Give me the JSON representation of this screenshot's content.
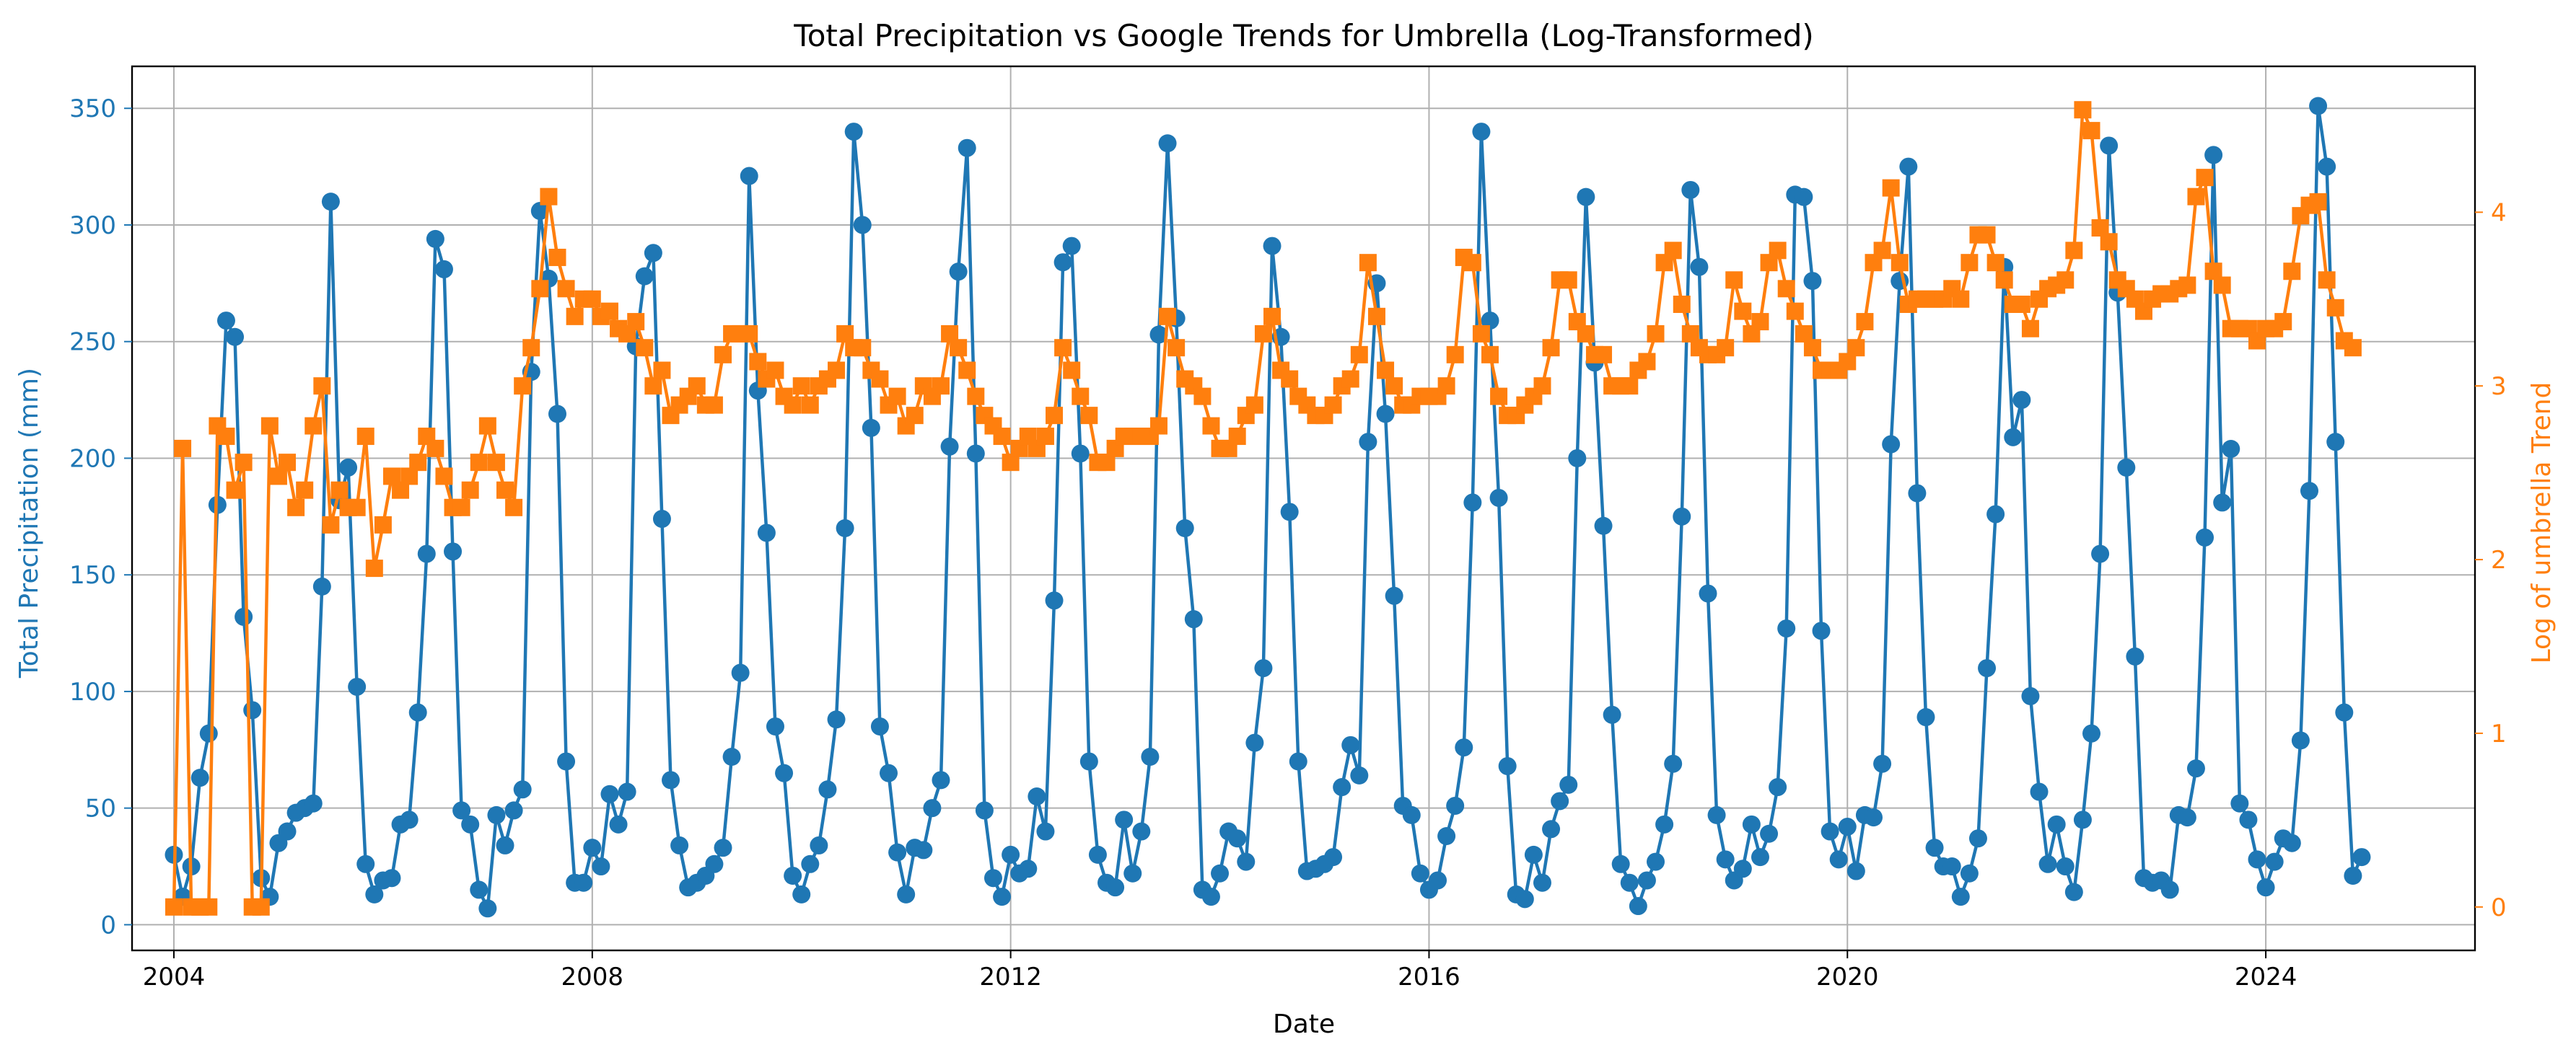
{
  "chart_data": {
    "type": "line",
    "title": "Total Precipitation vs Google Trends for Umbrella (Log-Transformed)",
    "xlabel": "Date",
    "ylabel_left": "Total Precipitation (mm)",
    "ylabel_right": "Log of umbrella Trend",
    "xlim": [
      2003.6,
      2026.0
    ],
    "ylim_left": [
      -11,
      368
    ],
    "ylim_right": [
      -0.25,
      4.84
    ],
    "grid": true,
    "colors": {
      "precip": "#1f77b4",
      "trend": "#ff7f0e",
      "axis": "#000000",
      "grid": "#b0b0b0"
    },
    "x_ticks": [
      {
        "value": 2004,
        "label": "2004"
      },
      {
        "value": 2008,
        "label": "2008"
      },
      {
        "value": 2012,
        "label": "2012"
      },
      {
        "value": 2016,
        "label": "2016"
      },
      {
        "value": 2020,
        "label": "2020"
      },
      {
        "value": 2024,
        "label": "2024"
      }
    ],
    "y_ticks_left": [
      {
        "value": 0,
        "label": "0"
      },
      {
        "value": 50,
        "label": "50"
      },
      {
        "value": 100,
        "label": "100"
      },
      {
        "value": 150,
        "label": "150"
      },
      {
        "value": 200,
        "label": "200"
      },
      {
        "value": 250,
        "label": "250"
      },
      {
        "value": 300,
        "label": "300"
      },
      {
        "value": 350,
        "label": "350"
      }
    ],
    "y_ticks_right": [
      {
        "value": 0,
        "label": "0"
      },
      {
        "value": 1,
        "label": "1"
      },
      {
        "value": 2,
        "label": "2"
      },
      {
        "value": 3,
        "label": "3"
      },
      {
        "value": 4,
        "label": "4"
      }
    ],
    "start_year": 2004,
    "series": [
      {
        "name": "Total Precipitation (mm)",
        "axis": "left",
        "marker": "circle",
        "values": [
          30,
          12,
          25,
          63,
          82,
          180,
          259,
          252,
          132,
          92,
          20,
          12,
          35,
          40,
          48,
          50,
          52,
          145,
          310,
          182,
          196,
          102,
          26,
          13,
          19,
          20,
          43,
          45,
          91,
          159,
          294,
          281,
          160,
          49,
          43,
          15,
          7,
          47,
          34,
          49,
          58,
          237,
          306,
          277,
          219,
          70,
          18,
          18,
          33,
          25,
          56,
          43,
          57,
          248,
          278,
          288,
          174,
          62,
          34,
          16,
          18,
          21,
          26,
          33,
          72,
          108,
          321,
          229,
          168,
          85,
          65,
          21,
          13,
          26,
          34,
          58,
          88,
          170,
          340,
          300,
          213,
          85,
          65,
          31,
          13,
          33,
          32,
          50,
          62,
          205,
          280,
          333,
          202,
          49,
          20,
          12,
          30,
          22,
          24,
          55,
          40,
          139,
          284,
          291,
          202,
          70,
          30,
          18,
          16,
          45,
          22,
          40,
          72,
          253,
          335,
          260,
          170,
          131,
          15,
          12,
          22,
          40,
          37,
          27,
          78,
          110,
          291,
          252,
          177,
          70,
          23,
          24,
          26,
          29,
          59,
          77,
          64,
          207,
          275,
          219,
          141,
          51,
          47,
          22,
          15,
          19,
          38,
          51,
          76,
          181,
          340,
          259,
          183,
          68,
          13,
          11,
          30,
          18,
          41,
          53,
          60,
          200,
          312,
          241,
          171,
          90,
          26,
          18,
          8,
          19,
          27,
          43,
          69,
          175,
          315,
          282,
          142,
          47,
          28,
          19,
          24,
          43,
          29,
          39,
          59,
          127,
          313,
          312,
          276,
          126,
          40,
          28,
          42,
          23,
          47,
          46,
          69,
          206,
          276,
          325,
          185,
          89,
          33,
          25,
          25,
          12,
          22,
          37,
          110,
          176,
          282,
          209,
          225,
          98,
          57,
          26,
          43,
          25,
          14,
          45,
          82,
          159,
          334,
          271,
          196,
          115,
          20,
          18,
          19,
          15,
          47,
          46,
          67,
          166,
          330,
          181,
          204,
          52,
          45,
          28,
          16,
          27,
          37,
          35,
          79,
          186,
          351,
          325,
          207,
          91,
          21,
          29
        ]
      },
      {
        "name": "Log of umbrella Trend",
        "axis": "right",
        "marker": "square",
        "values": [
          0,
          2.64,
          0,
          0,
          0,
          2.77,
          2.71,
          2.4,
          2.56,
          0,
          0,
          2.77,
          2.48,
          2.56,
          2.3,
          2.4,
          2.77,
          3.0,
          2.2,
          2.4,
          2.3,
          2.3,
          2.71,
          1.95,
          2.2,
          2.48,
          2.4,
          2.48,
          2.56,
          2.71,
          2.64,
          2.48,
          2.3,
          2.3,
          2.4,
          2.56,
          2.77,
          2.56,
          2.4,
          2.3,
          3.0,
          3.22,
          3.56,
          4.09,
          3.74,
          3.56,
          3.4,
          3.5,
          3.5,
          3.4,
          3.43,
          3.33,
          3.3,
          3.37,
          3.22,
          3.0,
          3.09,
          2.83,
          2.89,
          2.94,
          3.0,
          2.89,
          2.89,
          3.18,
          3.3,
          3.3,
          3.3,
          3.14,
          3.04,
          3.09,
          2.94,
          2.89,
          3.0,
          2.89,
          3.0,
          3.04,
          3.09,
          3.3,
          3.22,
          3.22,
          3.09,
          3.04,
          2.89,
          2.94,
          2.77,
          2.83,
          3.0,
          2.94,
          3.0,
          3.3,
          3.22,
          3.09,
          2.94,
          2.83,
          2.77,
          2.71,
          2.56,
          2.64,
          2.71,
          2.64,
          2.71,
          2.83,
          3.22,
          3.09,
          2.94,
          2.83,
          2.56,
          2.56,
          2.64,
          2.71,
          2.71,
          2.71,
          2.71,
          2.77,
          3.4,
          3.22,
          3.04,
          3.0,
          2.94,
          2.77,
          2.64,
          2.64,
          2.71,
          2.83,
          2.89,
          3.3,
          3.4,
          3.09,
          3.04,
          2.94,
          2.89,
          2.83,
          2.83,
          2.89,
          3.0,
          3.04,
          3.18,
          3.71,
          3.4,
          3.09,
          3.0,
          2.89,
          2.89,
          2.94,
          2.94,
          2.94,
          3.0,
          3.18,
          3.74,
          3.71,
          3.3,
          3.18,
          2.94,
          2.83,
          2.83,
          2.89,
          2.94,
          3.0,
          3.22,
          3.61,
          3.61,
          3.37,
          3.3,
          3.18,
          3.18,
          3.0,
          3.0,
          3.0,
          3.09,
          3.14,
          3.3,
          3.71,
          3.78,
          3.47,
          3.3,
          3.22,
          3.18,
          3.18,
          3.22,
          3.61,
          3.43,
          3.3,
          3.37,
          3.71,
          3.78,
          3.56,
          3.43,
          3.3,
          3.22,
          3.09,
          3.09,
          3.09,
          3.14,
          3.22,
          3.37,
          3.71,
          3.78,
          4.14,
          3.71,
          3.47,
          3.5,
          3.5,
          3.5,
          3.5,
          3.56,
          3.5,
          3.71,
          3.87,
          3.87,
          3.71,
          3.61,
          3.47,
          3.47,
          3.33,
          3.5,
          3.56,
          3.58,
          3.61,
          3.78,
          4.59,
          4.47,
          3.91,
          3.83,
          3.61,
          3.56,
          3.5,
          3.43,
          3.5,
          3.53,
          3.53,
          3.56,
          3.58,
          4.09,
          4.2,
          3.66,
          3.58,
          3.33,
          3.33,
          3.33,
          3.26,
          3.33,
          3.33,
          3.37,
          3.66,
          3.98,
          4.04,
          4.06,
          3.61,
          3.45,
          3.26,
          3.22
        ]
      }
    ]
  }
}
